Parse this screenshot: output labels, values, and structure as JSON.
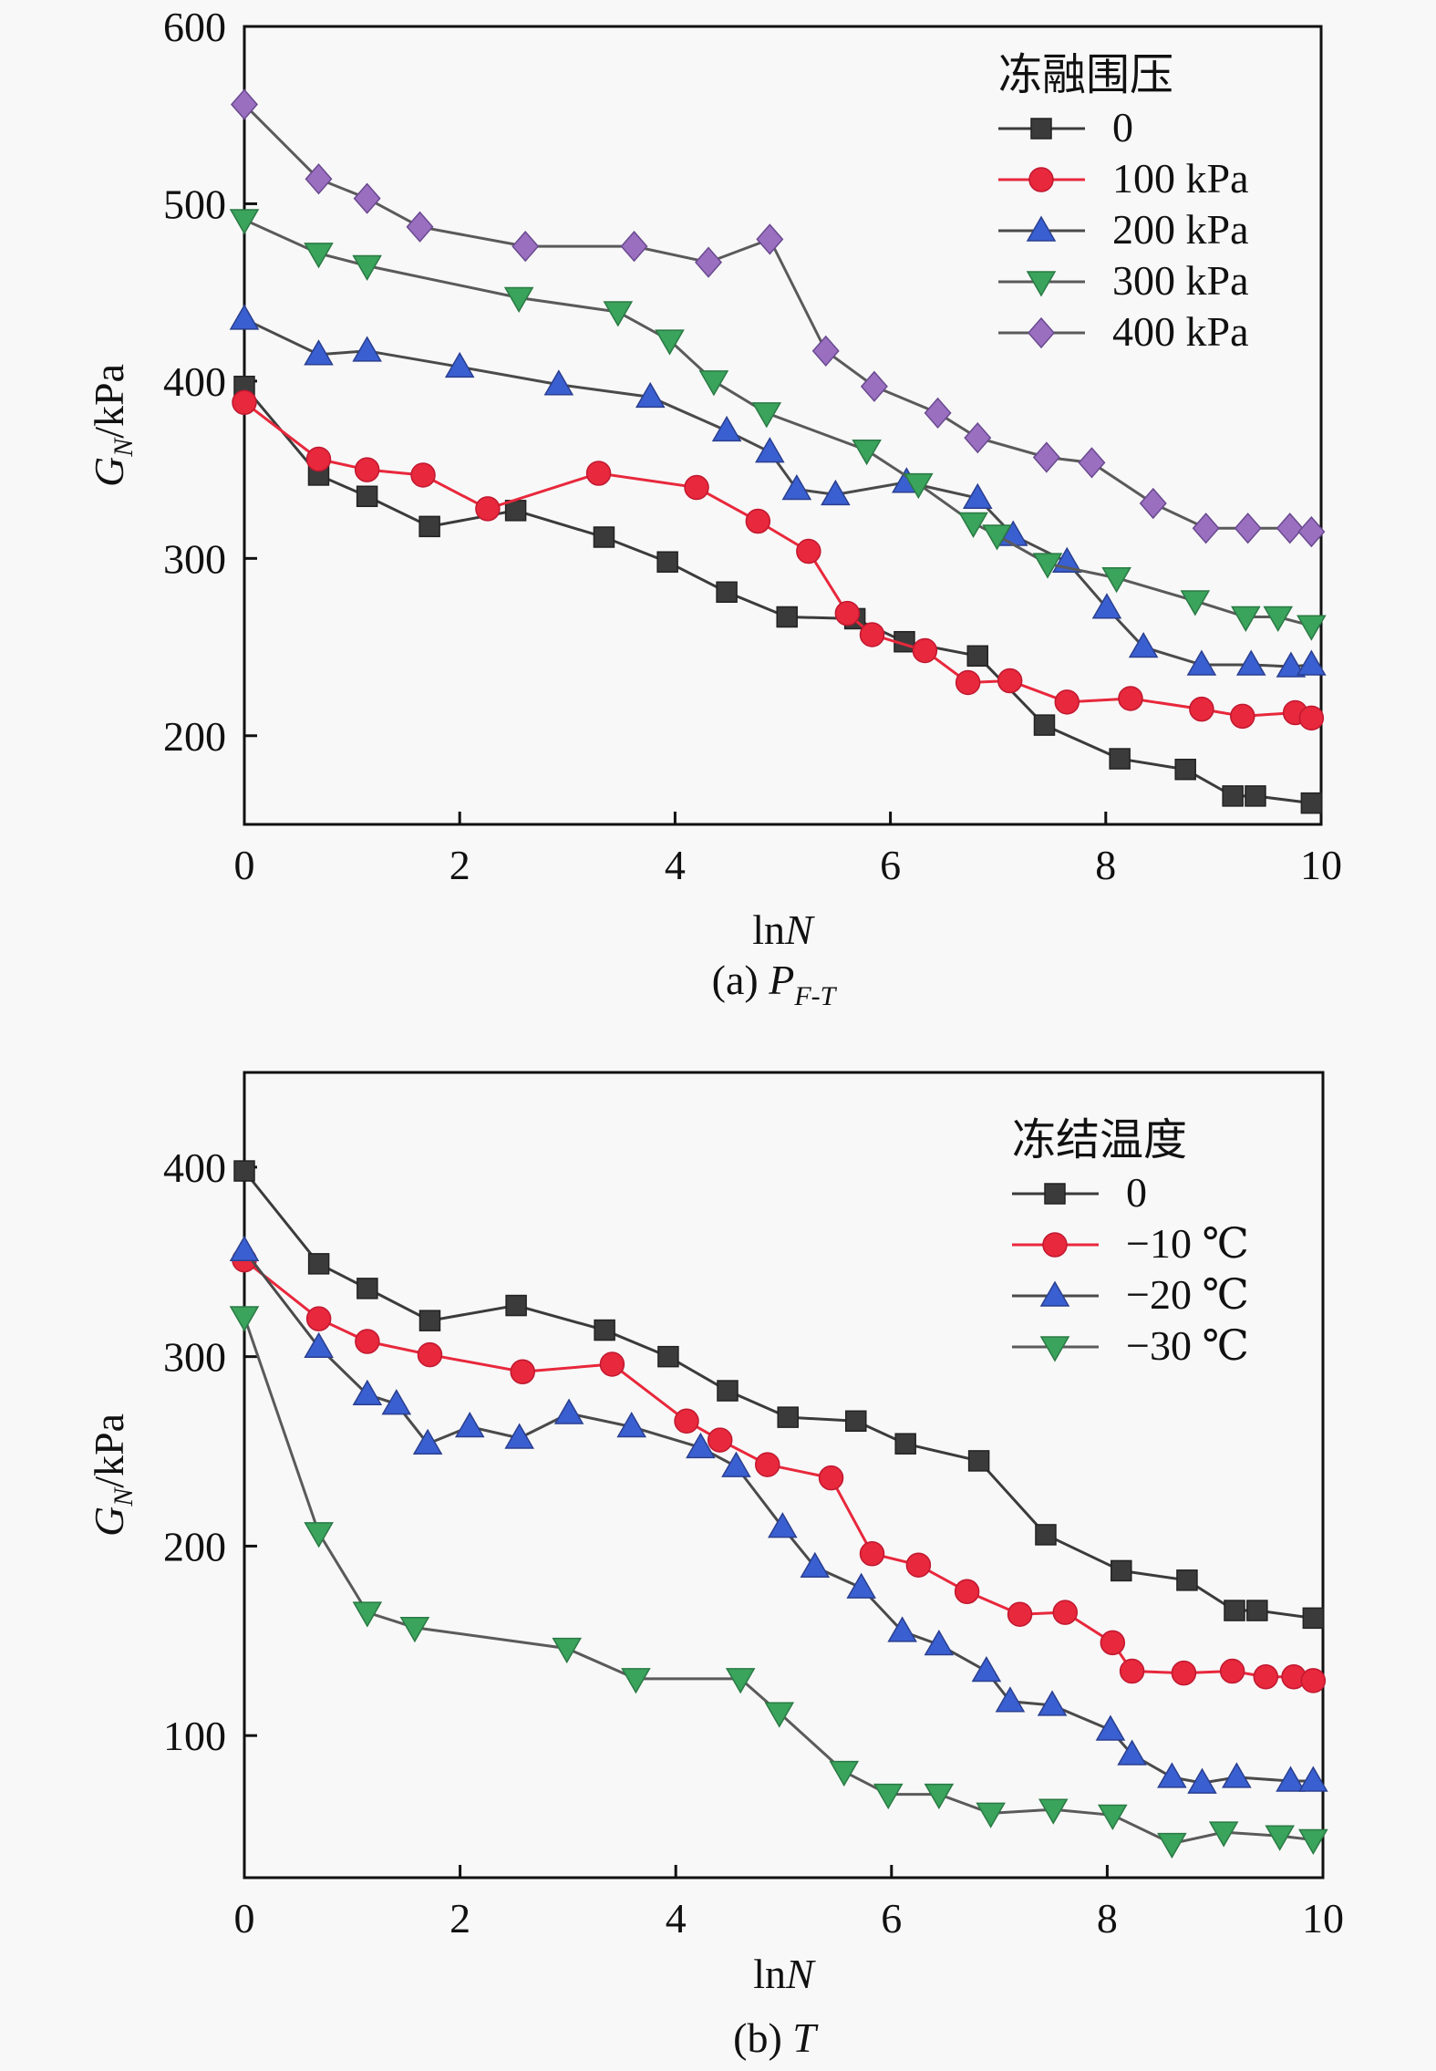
{
  "chart_data": [
    {
      "id": "a",
      "type": "line",
      "caption_prefix": "(a) ",
      "caption_var": "P",
      "caption_sub": "F-T",
      "xlabel_main": "ln",
      "xlabel_var": "N",
      "ylabel_main": "G",
      "ylabel_sub": "N",
      "ylabel_unit": "/kPa",
      "xlim": [
        0,
        10
      ],
      "ylim": [
        150,
        600
      ],
      "xticks": [
        0,
        2,
        4,
        6,
        8,
        10
      ],
      "yticks": [
        200,
        300,
        400,
        500,
        600
      ],
      "grid": false,
      "legend_title": "冻融围压",
      "legend_position": "top-right",
      "series": [
        {
          "name": "0",
          "marker": "square",
          "color": "#3b3b3b",
          "line": "#3b3b3b",
          "x": [
            0,
            0.69,
            1.14,
            1.72,
            2.52,
            3.34,
            3.93,
            4.48,
            5.04,
            5.67,
            6.13,
            6.81,
            7.43,
            8.13,
            8.74,
            9.18,
            9.39,
            9.91
          ],
          "y": [
            397,
            347,
            335,
            318,
            327,
            312,
            298,
            281,
            267,
            266,
            253,
            245,
            206,
            187,
            181,
            166,
            166,
            162
          ]
        },
        {
          "name": "100 kPa",
          "marker": "circle",
          "color": "#e8283c",
          "line": "#e8283c",
          "x": [
            0,
            0.69,
            1.14,
            1.66,
            2.26,
            3.29,
            4.2,
            4.77,
            5.24,
            5.6,
            5.83,
            6.32,
            6.72,
            7.11,
            7.64,
            8.23,
            8.89,
            9.27,
            9.76,
            9.91
          ],
          "y": [
            388,
            356,
            350,
            347,
            328,
            348,
            340,
            321,
            304,
            269,
            257,
            248,
            230,
            231,
            219,
            221,
            215,
            211,
            213,
            210
          ]
        },
        {
          "name": "200 kPa",
          "marker": "triangle-up",
          "color": "#3a5fd0",
          "line": "#4a4a4a",
          "x": [
            0,
            0.69,
            1.14,
            2.0,
            2.92,
            3.77,
            4.48,
            4.88,
            5.13,
            5.49,
            6.15,
            6.81,
            7.14,
            7.64,
            8.01,
            8.35,
            8.89,
            9.35,
            9.72,
            9.91
          ],
          "y": [
            435,
            415,
            417,
            408,
            398,
            391,
            372,
            360,
            339,
            336,
            343,
            334,
            313,
            298,
            272,
            250,
            240,
            240,
            239,
            240
          ]
        },
        {
          "name": "300 kPa",
          "marker": "triangle-down",
          "color": "#3aa35c",
          "line": "#5a5a5a",
          "x": [
            0,
            0.69,
            1.14,
            2.55,
            3.47,
            3.95,
            4.36,
            4.85,
            5.78,
            6.26,
            6.77,
            6.99,
            7.46,
            8.1,
            8.83,
            9.3,
            9.6,
            9.91
          ],
          "y": [
            491,
            472,
            465,
            447,
            439,
            423,
            400,
            382,
            361,
            342,
            320,
            313,
            297,
            289,
            276,
            267,
            267,
            262
          ]
        },
        {
          "name": "400 kPa",
          "marker": "diamond",
          "color": "#9a6fc0",
          "line": "#5a5a5a",
          "x": [
            0,
            0.69,
            1.14,
            1.63,
            2.61,
            3.62,
            4.31,
            4.88,
            5.4,
            5.85,
            6.44,
            6.81,
            7.45,
            7.87,
            8.44,
            8.93,
            9.32,
            9.71,
            9.91
          ],
          "y": [
            556,
            514,
            503,
            487,
            476,
            476,
            467,
            480,
            417,
            397,
            382,
            368,
            357,
            354,
            331,
            317,
            317,
            317,
            315
          ]
        }
      ]
    },
    {
      "id": "b",
      "type": "line",
      "caption_prefix": "(b) ",
      "caption_var": "T",
      "caption_sub": "",
      "xlabel_main": "ln",
      "xlabel_var": "N",
      "ylabel_main": "G",
      "ylabel_sub": "N",
      "ylabel_unit": "/kPa",
      "xlim": [
        0,
        10
      ],
      "ylim": [
        25,
        450
      ],
      "xticks": [
        0,
        2,
        4,
        6,
        8,
        10
      ],
      "yticks": [
        100,
        200,
        300,
        400
      ],
      "grid": false,
      "legend_title": "冻结温度",
      "legend_position": "top-right",
      "series": [
        {
          "name": "0",
          "marker": "square",
          "color": "#3b3b3b",
          "line": "#3b3b3b",
          "x": [
            0,
            0.69,
            1.14,
            1.72,
            2.52,
            3.34,
            3.93,
            4.48,
            5.04,
            5.67,
            6.13,
            6.81,
            7.43,
            8.13,
            8.74,
            9.18,
            9.39,
            9.91
          ],
          "y": [
            398,
            349,
            336,
            319,
            327,
            314,
            300,
            282,
            268,
            266,
            254,
            245,
            206,
            187,
            182,
            166,
            166,
            162
          ]
        },
        {
          "name": "−10 ℃",
          "marker": "circle",
          "color": "#e8283c",
          "line": "#e8283c",
          "x": [
            0,
            0.69,
            1.14,
            1.72,
            2.58,
            3.41,
            4.1,
            4.41,
            4.85,
            5.44,
            5.82,
            6.25,
            6.7,
            7.19,
            7.61,
            8.05,
            8.23,
            8.71,
            9.16,
            9.47,
            9.73,
            9.91
          ],
          "y": [
            351,
            320,
            308,
            301,
            292,
            296,
            266,
            256,
            243,
            236,
            196,
            190,
            176,
            164,
            165,
            149,
            134,
            133,
            134,
            131,
            131,
            129
          ]
        },
        {
          "name": "−20 ℃",
          "marker": "triangle-up",
          "color": "#3a5fd0",
          "line": "#4a4a4a",
          "x": [
            0,
            0.69,
            1.14,
            1.41,
            1.7,
            2.09,
            2.55,
            3.01,
            3.59,
            4.23,
            4.56,
            4.99,
            5.29,
            5.72,
            6.1,
            6.44,
            6.88,
            7.1,
            7.49,
            8.03,
            8.23,
            8.6,
            8.88,
            9.2,
            9.7,
            9.91
          ],
          "y": [
            356,
            305,
            280,
            275,
            254,
            263,
            257,
            270,
            263,
            252,
            242,
            210,
            189,
            178,
            155,
            148,
            134,
            118,
            116,
            103,
            90,
            78,
            75,
            78,
            76,
            76
          ]
        },
        {
          "name": "−30 ℃",
          "marker": "triangle-down",
          "color": "#3aa35c",
          "line": "#5a5a5a",
          "x": [
            0,
            0.69,
            1.14,
            1.58,
            2.99,
            3.63,
            4.6,
            4.96,
            5.56,
            5.97,
            6.44,
            6.92,
            7.5,
            8.05,
            8.6,
            9.08,
            9.6,
            9.91
          ],
          "y": [
            321,
            207,
            165,
            157,
            146,
            130,
            130,
            112,
            81,
            69,
            69,
            59,
            61,
            58,
            43,
            49,
            47,
            45
          ]
        }
      ]
    }
  ]
}
